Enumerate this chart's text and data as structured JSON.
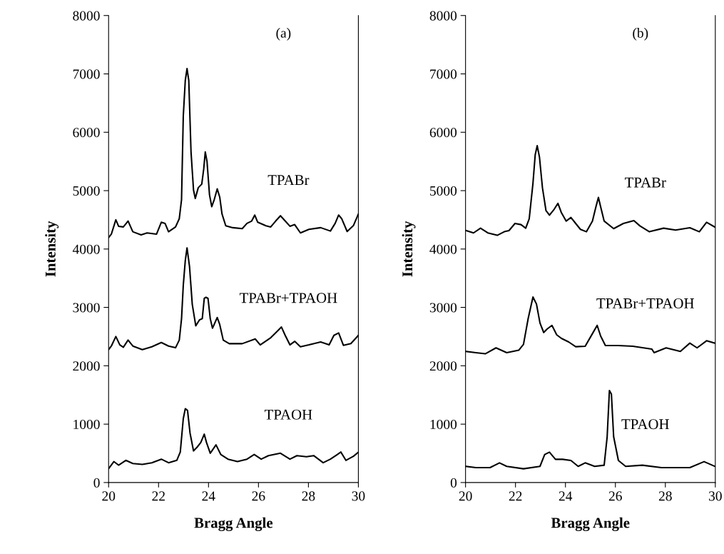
{
  "chart_data": [
    {
      "type": "line",
      "title": "(a)",
      "xlabel": "Bragg Angle",
      "ylabel": "Intensity",
      "xlim": [
        20,
        30
      ],
      "xticks": [
        20,
        22,
        24,
        26,
        28,
        30
      ],
      "ylim": [
        0,
        8000
      ],
      "yticks": [
        0,
        1000,
        2000,
        3000,
        4000,
        5000,
        6000,
        7000,
        8000
      ],
      "grid": false,
      "legend": false,
      "marker": "none",
      "line_style": "solid",
      "series": [
        {
          "name": "TPABr",
          "color": "#000000",
          "x": [
            20.0,
            20.11,
            20.29,
            20.4,
            20.59,
            20.78,
            20.97,
            21.3,
            21.54,
            21.92,
            22.11,
            22.26,
            22.4,
            22.68,
            22.83,
            22.92,
            22.99,
            23.07,
            23.14,
            23.21,
            23.3,
            23.4,
            23.47,
            23.59,
            23.73,
            23.81,
            23.87,
            23.94,
            24.04,
            24.13,
            24.23,
            24.35,
            24.45,
            24.54,
            24.69,
            24.97,
            25.35,
            25.54,
            25.73,
            25.85,
            25.97,
            26.3,
            26.49,
            26.69,
            26.88,
            27.07,
            27.26,
            27.45,
            27.68,
            28.02,
            28.49,
            28.88,
            29.07,
            29.21,
            29.33,
            29.55,
            29.8,
            30.0
          ],
          "values": [
            4195,
            4255,
            4500,
            4390,
            4378,
            4480,
            4296,
            4243,
            4276,
            4255,
            4459,
            4439,
            4296,
            4378,
            4521,
            4847,
            6275,
            6887,
            7091,
            6887,
            5663,
            5010,
            4867,
            5051,
            5112,
            5377,
            5663,
            5500,
            4929,
            4725,
            4847,
            5031,
            4888,
            4602,
            4398,
            4366,
            4349,
            4439,
            4480,
            4582,
            4459,
            4398,
            4378,
            4480,
            4570,
            4480,
            4390,
            4419,
            4276,
            4337,
            4366,
            4308,
            4439,
            4582,
            4521,
            4300,
            4400,
            4600
          ]
        },
        {
          "name": "TPABr+TPAOH",
          "color": "#000000",
          "x": [
            20.0,
            20.11,
            20.29,
            20.45,
            20.59,
            20.78,
            20.97,
            21.35,
            21.73,
            22.11,
            22.4,
            22.68,
            22.83,
            22.92,
            22.99,
            23.07,
            23.14,
            23.24,
            23.35,
            23.49,
            23.64,
            23.75,
            23.83,
            23.9,
            23.98,
            24.07,
            24.16,
            24.35,
            24.45,
            24.59,
            24.83,
            25.35,
            25.87,
            26.07,
            26.49,
            26.73,
            26.92,
            27.07,
            27.26,
            27.45,
            27.68,
            28.02,
            28.49,
            28.83,
            29.02,
            29.21,
            29.4,
            29.7,
            30.0
          ],
          "values": [
            2277,
            2338,
            2501,
            2358,
            2317,
            2440,
            2338,
            2277,
            2326,
            2399,
            2338,
            2309,
            2440,
            2807,
            3378,
            3800,
            4020,
            3700,
            3052,
            2685,
            2787,
            2807,
            3154,
            3174,
            3154,
            2807,
            2644,
            2827,
            2705,
            2440,
            2379,
            2379,
            2460,
            2358,
            2481,
            2583,
            2664,
            2521,
            2358,
            2419,
            2326,
            2358,
            2407,
            2358,
            2521,
            2562,
            2350,
            2380,
            2520
          ]
        },
        {
          "name": "TPAOH",
          "color": "#000000",
          "x": [
            20.0,
            20.21,
            20.4,
            20.69,
            20.97,
            21.35,
            21.73,
            22.11,
            22.4,
            22.73,
            22.87,
            22.99,
            23.07,
            23.16,
            23.26,
            23.4,
            23.54,
            23.69,
            23.83,
            23.92,
            24.07,
            24.3,
            24.49,
            24.78,
            25.16,
            25.54,
            25.83,
            26.11,
            26.4,
            26.88,
            27.26,
            27.54,
            27.92,
            28.21,
            28.59,
            28.88,
            29.16,
            29.3,
            29.5,
            29.8,
            30.0
          ],
          "values": [
            237,
            359,
            298,
            380,
            326,
            310,
            339,
            400,
            339,
            380,
            522,
            1093,
            1265,
            1236,
            849,
            542,
            604,
            685,
            828,
            685,
            502,
            645,
            481,
            400,
            359,
            400,
            481,
            400,
            461,
            502,
            400,
            461,
            441,
            461,
            339,
            400,
            481,
            522,
            380,
            450,
            520
          ]
        }
      ]
    },
    {
      "type": "line",
      "title": "(b)",
      "xlabel": "Bragg Angle",
      "ylabel": "Intensity",
      "xlim": [
        20,
        30
      ],
      "xticks": [
        20,
        22,
        24,
        26,
        28,
        30
      ],
      "ylim": [
        0,
        8000
      ],
      "yticks": [
        0,
        1000,
        2000,
        3000,
        4000,
        5000,
        6000,
        7000,
        8000
      ],
      "grid": false,
      "legend": false,
      "marker": "none",
      "line_style": "solid",
      "series": [
        {
          "name": "TPABr",
          "color": "#000000",
          "x": [
            20.03,
            20.32,
            20.6,
            20.89,
            21.27,
            21.55,
            21.74,
            21.98,
            22.22,
            22.41,
            22.55,
            22.7,
            22.79,
            22.87,
            22.96,
            23.08,
            23.22,
            23.36,
            23.55,
            23.7,
            23.84,
            24.03,
            24.22,
            24.41,
            24.6,
            24.84,
            25.08,
            25.22,
            25.32,
            25.41,
            25.55,
            25.93,
            26.32,
            26.74,
            26.98,
            27.36,
            27.93,
            28.41,
            28.98,
            29.36,
            29.65,
            29.98
          ],
          "values": [
            4316,
            4276,
            4357,
            4276,
            4235,
            4296,
            4316,
            4438,
            4418,
            4357,
            4519,
            5128,
            5616,
            5770,
            5575,
            5047,
            4661,
            4580,
            4682,
            4783,
            4621,
            4479,
            4540,
            4438,
            4337,
            4296,
            4479,
            4722,
            4885,
            4722,
            4479,
            4349,
            4438,
            4487,
            4397,
            4296,
            4357,
            4324,
            4365,
            4296,
            4458,
            4377
          ]
        },
        {
          "name": "TPABr+TPAOH",
          "color": "#000000",
          "x": [
            20.03,
            20.41,
            20.79,
            21.22,
            21.65,
            22.13,
            22.32,
            22.51,
            22.7,
            22.84,
            22.98,
            23.13,
            23.27,
            23.46,
            23.65,
            23.84,
            24.13,
            24.41,
            24.79,
            25.08,
            25.27,
            25.41,
            25.6,
            26.12,
            26.7,
            27.46,
            27.55,
            28.03,
            28.6,
            28.98,
            29.27,
            29.65,
            29.98
          ],
          "values": [
            2246,
            2225,
            2205,
            2307,
            2225,
            2266,
            2367,
            2814,
            3179,
            3058,
            2733,
            2570,
            2631,
            2692,
            2530,
            2469,
            2408,
            2327,
            2335,
            2550,
            2692,
            2509,
            2347,
            2347,
            2335,
            2286,
            2225,
            2307,
            2246,
            2388,
            2307,
            2428,
            2388
          ]
        },
        {
          "name": "TPAOH",
          "color": "#000000",
          "x": [
            20.03,
            20.41,
            20.98,
            21.36,
            21.65,
            22.32,
            22.98,
            23.17,
            23.36,
            23.6,
            23.89,
            24.22,
            24.51,
            24.79,
            25.17,
            25.55,
            25.67,
            25.76,
            25.84,
            25.93,
            26.12,
            26.41,
            27.08,
            27.84,
            28.51,
            28.98,
            29.55,
            29.98
          ],
          "values": [
            277,
            256,
            256,
            337,
            277,
            236,
            277,
            480,
            520,
            398,
            398,
            378,
            277,
            337,
            277,
            297,
            784,
            1576,
            1515,
            784,
            378,
            277,
            297,
            256,
            256,
            256,
            358,
            277
          ]
        }
      ]
    }
  ]
}
